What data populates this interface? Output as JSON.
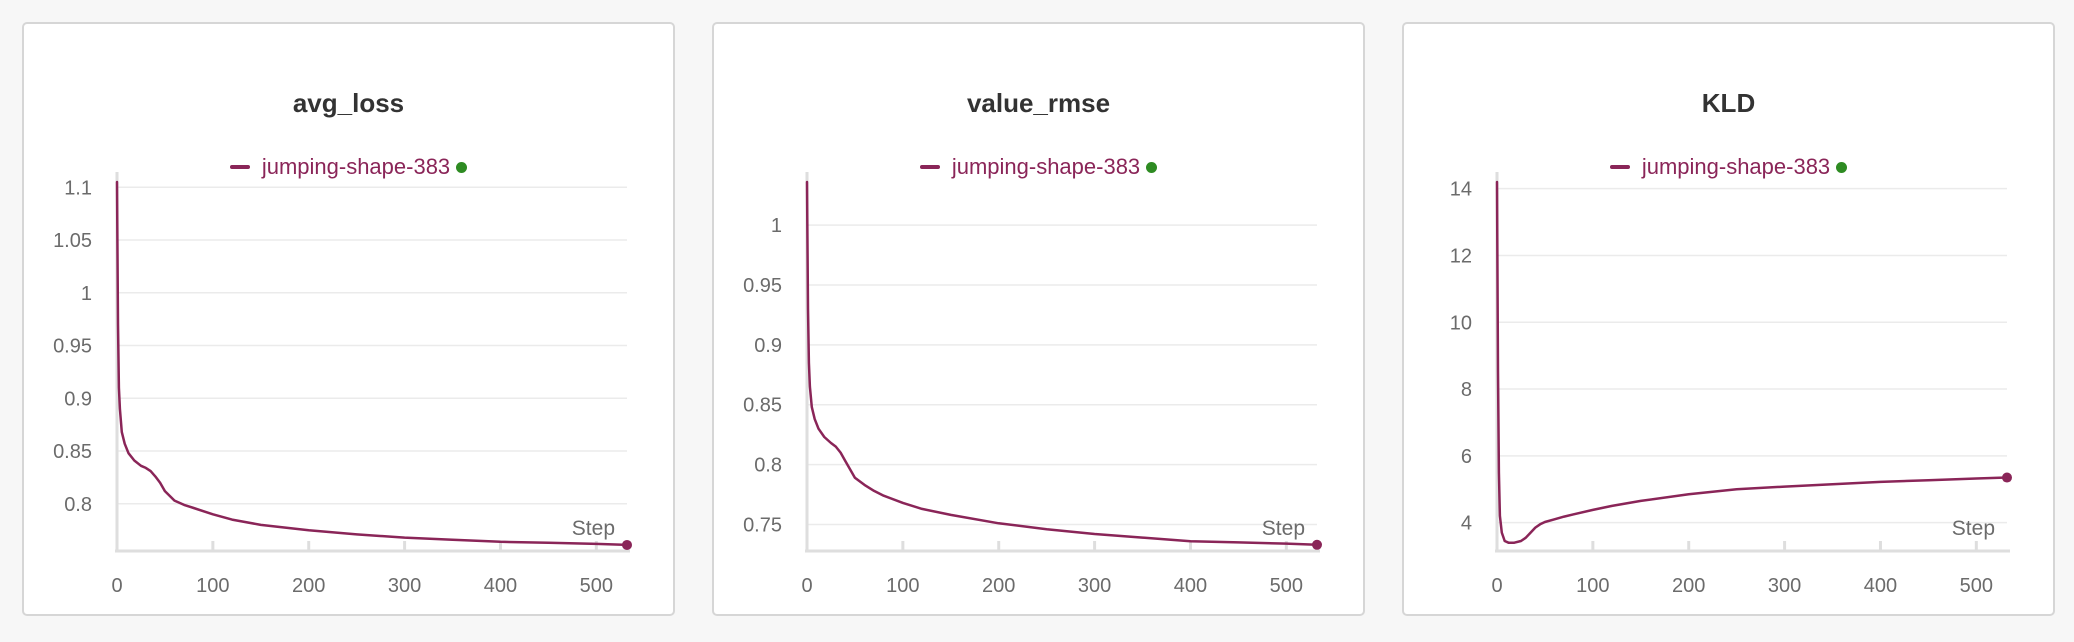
{
  "colors": {
    "series": "#8a2558",
    "status_dot": "#2e8b22",
    "grid": "#ebebeb",
    "axis": "#dedede",
    "text": "#6b6b6b"
  },
  "chart_data": [
    {
      "type": "line",
      "title": "avg_loss",
      "xlabel": "Step",
      "ylabel": "",
      "xlim": [
        0,
        532
      ],
      "ylim": [
        0.76,
        1.105
      ],
      "x_ticks": [
        0,
        100,
        200,
        300,
        400,
        500
      ],
      "x_tick_labels": [
        "0",
        "100",
        "200",
        "300",
        "400",
        "500"
      ],
      "y_ticks": [
        0.8,
        0.85,
        0.9,
        0.95,
        1,
        1.05,
        1.1
      ],
      "y_tick_labels": [
        "0.8",
        "0.85",
        "0.9",
        "0.95",
        "1",
        "1.05",
        "1.1"
      ],
      "grid": true,
      "legend": "top-center",
      "series": [
        {
          "name": "jumping-shape-383",
          "x": [
            0,
            1,
            2,
            3,
            5,
            8,
            12,
            18,
            25,
            30,
            35,
            40,
            45,
            50,
            60,
            70,
            80,
            100,
            120,
            150,
            200,
            250,
            300,
            350,
            400,
            450,
            500,
            532
          ],
          "values": [
            1.105,
            0.97,
            0.91,
            0.89,
            0.868,
            0.857,
            0.848,
            0.841,
            0.836,
            0.834,
            0.831,
            0.826,
            0.82,
            0.812,
            0.803,
            0.799,
            0.796,
            0.79,
            0.785,
            0.78,
            0.775,
            0.771,
            0.768,
            0.766,
            0.764,
            0.763,
            0.762,
            0.761
          ]
        }
      ]
    },
    {
      "type": "line",
      "title": "value_rmse",
      "xlabel": "Step",
      "ylabel": "",
      "xlim": [
        0,
        532
      ],
      "ylim": [
        0.732,
        1.036
      ],
      "x_ticks": [
        0,
        100,
        200,
        300,
        400,
        500
      ],
      "x_tick_labels": [
        "0",
        "100",
        "200",
        "300",
        "400",
        "500"
      ],
      "y_ticks": [
        0.75,
        0.8,
        0.85,
        0.9,
        0.95,
        1
      ],
      "y_tick_labels": [
        "0.75",
        "0.8",
        "0.85",
        "0.9",
        "0.95",
        "1"
      ],
      "grid": true,
      "legend": "top-center",
      "series": [
        {
          "name": "jumping-shape-383",
          "x": [
            0,
            1,
            2,
            3,
            5,
            8,
            12,
            18,
            25,
            30,
            35,
            40,
            45,
            50,
            60,
            70,
            80,
            100,
            120,
            150,
            200,
            250,
            300,
            350,
            400,
            450,
            500,
            532
          ],
          "values": [
            1.036,
            0.93,
            0.885,
            0.865,
            0.848,
            0.838,
            0.83,
            0.823,
            0.818,
            0.815,
            0.81,
            0.803,
            0.796,
            0.789,
            0.783,
            0.778,
            0.774,
            0.768,
            0.763,
            0.758,
            0.751,
            0.746,
            0.742,
            0.739,
            0.736,
            0.735,
            0.734,
            0.733
          ]
        }
      ]
    },
    {
      "type": "line",
      "title": "KLD",
      "xlabel": "Step",
      "ylabel": "",
      "xlim": [
        0,
        532
      ],
      "ylim": [
        3.3,
        14.2
      ],
      "x_ticks": [
        0,
        100,
        200,
        300,
        400,
        500
      ],
      "x_tick_labels": [
        "0",
        "100",
        "200",
        "300",
        "400",
        "500"
      ],
      "y_ticks": [
        4,
        6,
        8,
        10,
        12,
        14
      ],
      "y_tick_labels": [
        "4",
        "6",
        "8",
        "10",
        "12",
        "14"
      ],
      "grid": true,
      "legend": "top-center",
      "series": [
        {
          "name": "jumping-shape-383",
          "x": [
            0,
            1,
            2,
            3,
            5,
            8,
            12,
            18,
            25,
            30,
            35,
            40,
            45,
            50,
            60,
            70,
            80,
            100,
            120,
            150,
            200,
            250,
            300,
            350,
            400,
            450,
            500,
            532
          ],
          "values": [
            14.2,
            8.5,
            5.5,
            4.2,
            3.7,
            3.45,
            3.4,
            3.4,
            3.45,
            3.55,
            3.7,
            3.85,
            3.95,
            4.02,
            4.1,
            4.18,
            4.25,
            4.38,
            4.5,
            4.65,
            4.85,
            5.0,
            5.08,
            5.15,
            5.22,
            5.27,
            5.32,
            5.35
          ]
        }
      ]
    }
  ]
}
